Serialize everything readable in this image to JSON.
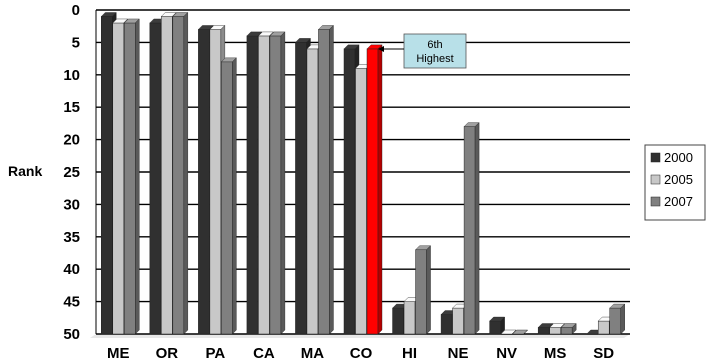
{
  "chart_data": {
    "type": "bar",
    "ylabel": "Rank",
    "xlabel": "",
    "ylim": [
      0,
      50
    ],
    "y_inverted": true,
    "y_ticks": [
      0,
      5,
      10,
      15,
      20,
      25,
      30,
      35,
      40,
      45,
      50
    ],
    "categories": [
      "ME",
      "OR",
      "PA",
      "CA",
      "MA",
      "CO",
      "HI",
      "NE",
      "NV",
      "MS",
      "SD"
    ],
    "series": [
      {
        "name": "2000",
        "color": "#303030",
        "values": [
          1,
          2,
          3,
          4,
          5,
          6,
          46,
          47,
          48,
          49,
          50
        ]
      },
      {
        "name": "2005",
        "color": "#c8c8c8",
        "values": [
          2,
          1,
          3,
          4,
          6,
          9,
          45,
          46,
          50,
          49,
          48
        ]
      },
      {
        "name": "2007",
        "color": "#808080",
        "values": [
          2,
          1,
          8,
          4,
          3,
          6,
          37,
          18,
          50,
          49,
          46
        ]
      }
    ],
    "highlight": {
      "category": "CO",
      "series": "2007",
      "color": "#ff0000"
    },
    "annotation": {
      "line1": "6th",
      "line2": "Highest",
      "background": "#b8e0e8"
    },
    "legend_position": "right",
    "grid": true
  }
}
